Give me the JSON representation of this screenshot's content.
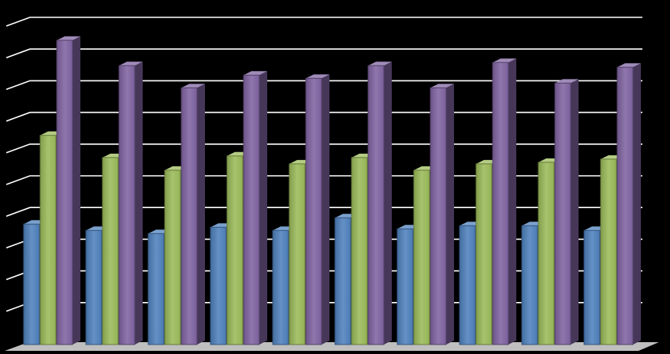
{
  "chart_data": {
    "type": "bar",
    "style": "3d-clustered-column",
    "categories": [
      "",
      "",
      "",
      "",
      "",
      "",
      "",
      "",
      "",
      ""
    ],
    "series": [
      {
        "color": "#4f81bd",
        "values": [
          3.8,
          3.6,
          3.5,
          3.7,
          3.6,
          4.0,
          3.65,
          3.75,
          3.75,
          3.6
        ]
      },
      {
        "color": "#9bbb59",
        "values": [
          6.6,
          5.9,
          5.5,
          5.95,
          5.7,
          5.9,
          5.5,
          5.7,
          5.75,
          5.85
        ]
      },
      {
        "color": "#8064a2",
        "values": [
          9.6,
          8.8,
          8.1,
          8.5,
          8.4,
          8.8,
          8.1,
          8.9,
          8.25,
          8.75
        ]
      }
    ],
    "ylim": [
      0,
      10
    ],
    "grid": true,
    "legend": "none",
    "title": "",
    "xlabel": "",
    "ylabel": ""
  },
  "colors": {
    "background": "#000000",
    "gridline": "#ffffff",
    "floor": "#bfbfbf"
  }
}
